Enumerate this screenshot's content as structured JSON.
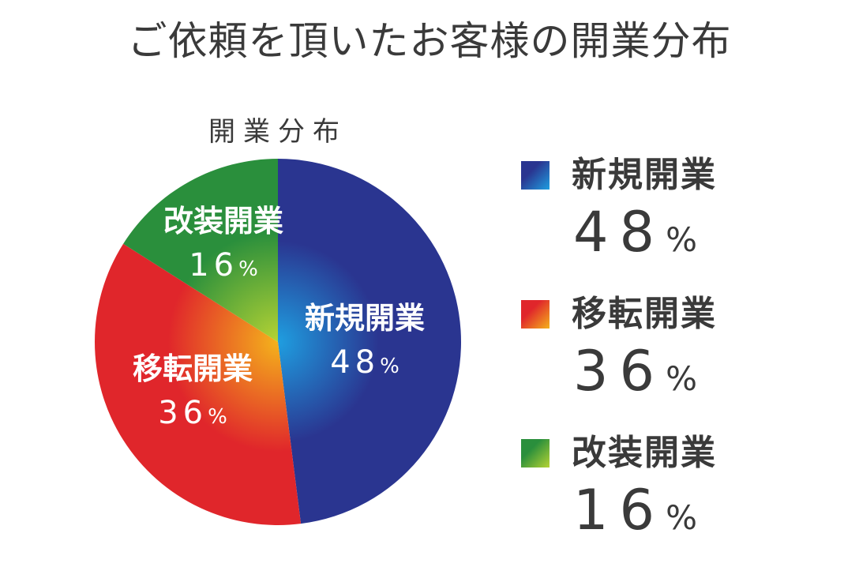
{
  "title": "ご依頼を頂いたお客様の開業分布",
  "chart_data": {
    "type": "pie",
    "title": "開業分布",
    "unit": "%",
    "start_angle": 0,
    "direction": "clockwise",
    "slices": [
      {
        "label": "新規開業",
        "value": 48,
        "color": "#2a3590",
        "color_light": "#1f9ee0"
      },
      {
        "label": "移転開業",
        "value": 36,
        "color": "#e0262b",
        "color_light": "#f4b21c"
      },
      {
        "label": "改装開業",
        "value": 16,
        "color": "#2a8f3c",
        "color_light": "#b5d334"
      }
    ]
  },
  "legend": {
    "items": [
      {
        "label": "新規開業",
        "value": "48",
        "unit": "%",
        "color": "#2a3590"
      },
      {
        "label": "移転開業",
        "value": "36",
        "unit": "%",
        "color": "#e0262b"
      },
      {
        "label": "改装開業",
        "value": "16",
        "unit": "%",
        "color": "#2a8f3c"
      }
    ]
  }
}
